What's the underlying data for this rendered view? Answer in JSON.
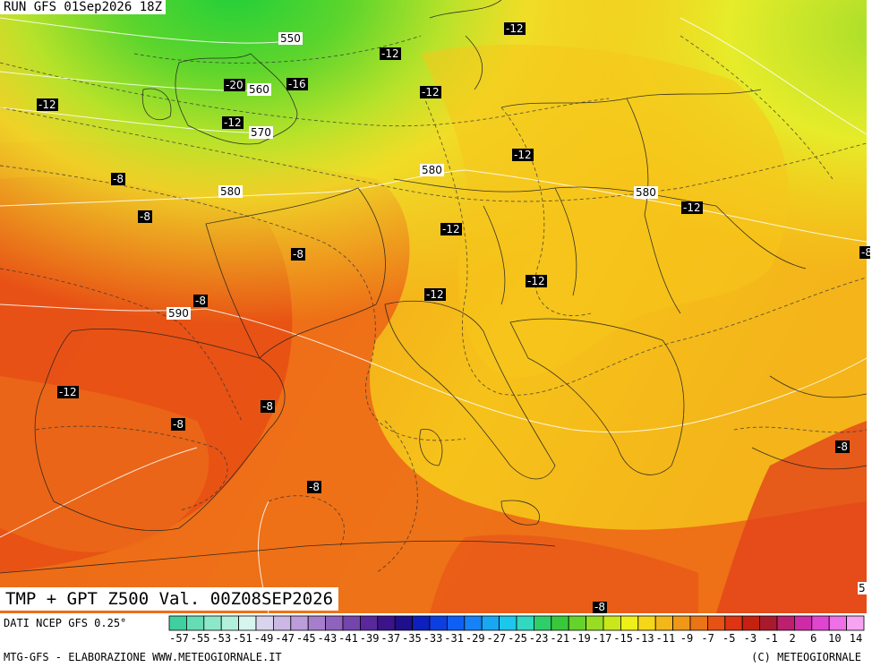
{
  "run_title": "RUN GFS 01Sep2026 18Z",
  "valid_title": "TMP + GPT Z500 Val. 00Z08SEP2026",
  "footer": {
    "dati": "DATI NCEP GFS 0.25°",
    "credit": "MTG-GFS - ELABORAZIONE WWW.METEOGIORNALE.IT",
    "copyright": "(C) METEOGIORNALE"
  },
  "scale_ticks": [
    "-57",
    "-55",
    "-53",
    "-51",
    "-49",
    "-47",
    "-45",
    "-43",
    "-41",
    "-39",
    "-37",
    "-35",
    "-33",
    "-31",
    "-29",
    "-27",
    "-25",
    "-23",
    "-21",
    "-19",
    "-17",
    "-15",
    "-13",
    "-11",
    "-9",
    "-7",
    "-5",
    "-3",
    "-1",
    "2",
    "6",
    "10",
    "14"
  ],
  "scale_colors": [
    "#3fcfa0",
    "#66dcb4",
    "#8de8c8",
    "#b3f0dc",
    "#d6f5ec",
    "#d9d4ee",
    "#cbb8e4",
    "#bd9cdb",
    "#a57fcc",
    "#8e62bd",
    "#7345ad",
    "#58289c",
    "#3a1488",
    "#1f0f8a",
    "#0d1fbd",
    "#0d3ee0",
    "#0f5ff5",
    "#1583f7",
    "#1aa7f2",
    "#1dc7ec",
    "#33d8c0",
    "#2ecf6a",
    "#39c83b",
    "#66d22c",
    "#98dd23",
    "#c8e81b",
    "#eef01a",
    "#f6d619",
    "#f3b71a",
    "#ee9718",
    "#ea7416",
    "#e65214",
    "#dd3411",
    "#c5210e",
    "#aa1a2e",
    "#bc1f6d",
    "#cf2aa8",
    "#e045d0",
    "#ee70e6",
    "#f6a3f2"
  ],
  "gpt_labels": [
    "550",
    "560",
    "570",
    "580",
    "580",
    "580",
    "590"
  ],
  "tmp_labels": [
    "-12",
    "-12",
    "-20",
    "-16",
    "-12",
    "-12",
    "-12",
    "-12",
    "-12",
    "-8",
    "-8",
    "-12",
    "-12",
    "-8",
    "-8",
    "-12",
    "-12",
    "-8",
    "-8",
    "-8",
    "-8",
    "-8",
    "-8"
  ],
  "edge_labels": [
    "5"
  ]
}
